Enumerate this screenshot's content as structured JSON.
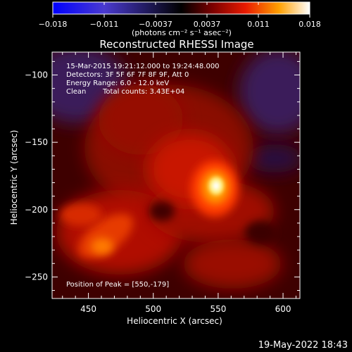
{
  "colorbar": {
    "ticks": [
      "-0.018",
      "-0.011",
      "-0.0037",
      "0.0037",
      "0.011",
      "0.018"
    ],
    "unit_label": "(photons cm⁻² s⁻¹ asec⁻²)",
    "range": [
      -0.018,
      0.018
    ]
  },
  "chart_data": {
    "type": "heatmap",
    "title": "Reconstructed RHESSI Image",
    "xlabel": "Heliocentric X (arcsec)",
    "ylabel": "Heliocentric Y (arcsec)",
    "xlim": [
      422,
      613
    ],
    "ylim": [
      -266,
      -83
    ],
    "xticks": [
      450,
      500,
      550,
      600
    ],
    "yticks": [
      -100,
      -150,
      -200,
      -250
    ],
    "xtick_labels": [
      "450",
      "500",
      "550",
      "600"
    ],
    "ytick_labels": [
      "−100",
      "−150",
      "−200",
      "−250"
    ],
    "peak": [
      550,
      -179
    ],
    "annotations": {
      "time": "15-Mar-2015 19:21:12.000 to 19:24:48.000",
      "detectors": "Detectors: 3F 5F 6F 7F 8F 9F, Att 0",
      "energy": "Energy Range: 6.0 - 12.0 keV",
      "clean": "Clean",
      "counts": "Total counts: 3.43E+04",
      "peak_text": "Position of Peak = [550,-179]"
    }
  },
  "footer": {
    "date": "19-May-2022 18:43"
  }
}
